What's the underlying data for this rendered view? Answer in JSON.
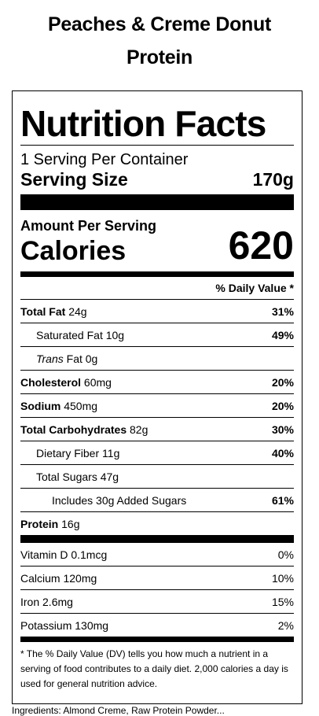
{
  "product": {
    "title_line1": "Peaches & Creme Donut",
    "title_line2": "Protein"
  },
  "label": {
    "heading": "Nutrition Facts",
    "servings_per_container": "1 Serving Per Container",
    "serving_size_label": "Serving Size",
    "serving_size_value": "170g",
    "amount_per_serving": "Amount Per Serving",
    "calories_label": "Calories",
    "calories_value": "620",
    "daily_value_header": "% Daily Value *",
    "nutrients": [
      {
        "name": "Total Fat",
        "amount": "24g",
        "pct": "31%"
      },
      {
        "name": "Saturated Fat",
        "amount": "10g",
        "pct": "49%"
      },
      {
        "name": "Trans",
        "name_suffix": "Fat",
        "amount": "0g",
        "pct": ""
      },
      {
        "name": "Cholesterol",
        "amount": "60mg",
        "pct": "20%"
      },
      {
        "name": "Sodium",
        "amount": "450mg",
        "pct": "20%"
      },
      {
        "name": "Total Carbohydrates",
        "amount": "82g",
        "pct": "30%"
      },
      {
        "name": "Dietary Fiber",
        "amount": "11g",
        "pct": "40%"
      },
      {
        "name": "Total Sugars",
        "amount": "47g",
        "pct": ""
      },
      {
        "name": "Includes 30g Added Sugars",
        "amount": "",
        "pct": "61%"
      },
      {
        "name": "Protein",
        "amount": "16g",
        "pct": ""
      }
    ],
    "vitamins": [
      {
        "name": "Vitamin D",
        "amount": "0.1mcg",
        "pct": "0%"
      },
      {
        "name": "Calcium",
        "amount": "120mg",
        "pct": "10%"
      },
      {
        "name": "Iron",
        "amount": "2.6mg",
        "pct": "15%"
      },
      {
        "name": "Potassium",
        "amount": "130mg",
        "pct": "2%"
      }
    ],
    "footnote": "* The % Daily Value (DV) tells you how much a nutrient in a serving of food contributes to a daily diet. 2,000 calories a day is used for general nutrition advice."
  },
  "ingredients_cutoff": "Ingredients: Almond Creme, Raw Protein Powder..."
}
